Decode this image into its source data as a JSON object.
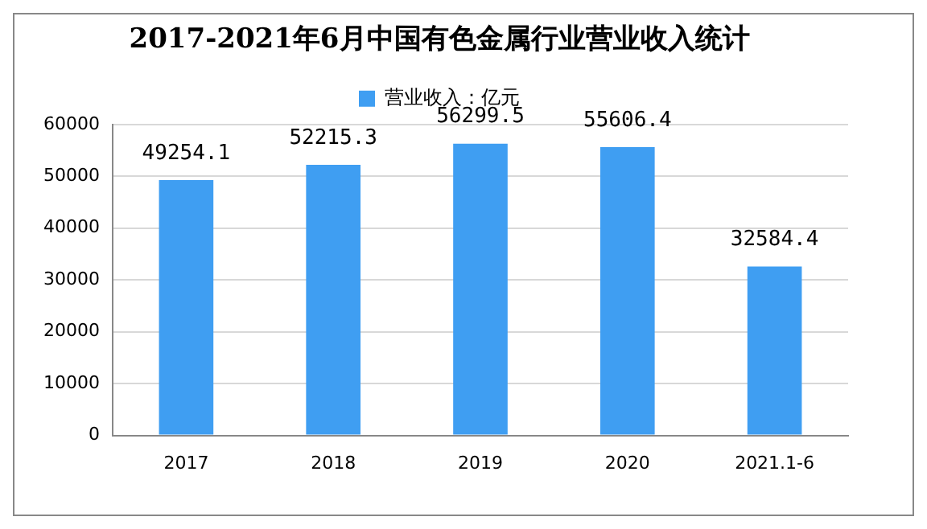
{
  "chart_data": {
    "type": "bar",
    "title": "2017-2021年6月中国有色金属行业营业收入统计",
    "categories": [
      "2017",
      "2018",
      "2019",
      "2020",
      "2021.1-6"
    ],
    "series": [
      {
        "name": "营业收入：亿元",
        "color": "#3f9ef2",
        "values": [
          49254.1,
          52215.3,
          56299.5,
          55606.4,
          32584.4
        ]
      }
    ],
    "ylim": [
      0,
      60000
    ],
    "yticks": [
      0,
      10000,
      20000,
      30000,
      40000,
      50000,
      60000
    ],
    "grid": "y",
    "legend": "top",
    "data_labels": true
  }
}
